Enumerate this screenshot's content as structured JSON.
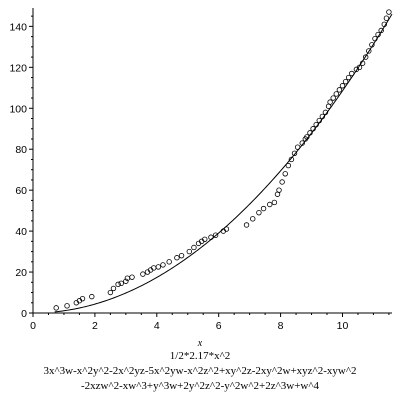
{
  "chart_data": {
    "type": "scatter",
    "xlabel": "x",
    "ylabel": "",
    "xlim": [
      0,
      11.6
    ],
    "ylim": [
      0,
      148
    ],
    "x_ticks": [
      0,
      2,
      4,
      6,
      8,
      10
    ],
    "y_ticks": [
      0,
      20,
      40,
      60,
      80,
      100,
      120,
      140
    ],
    "captions": [
      "1/2*2.17*x^2",
      "3x^3w-x^2y^2-2x^2yz-5x^2yw-x^2z^2+xy^2z-2xy^2w+xyz^2-xyw^2",
      "-2xzw^2-xw^3+y^3w+2y^2z^2-y^2w^2+2z^3w+w^4"
    ],
    "series": [
      {
        "kind": "points",
        "marker": "open-circle",
        "x": [
          0.75,
          1.1,
          1.4,
          1.5,
          1.6,
          1.9,
          2.5,
          2.6,
          2.75,
          2.85,
          3.0,
          3.05,
          3.2,
          3.55,
          3.7,
          3.8,
          3.9,
          4.05,
          4.2,
          4.4,
          4.65,
          4.8,
          5.05,
          5.2,
          5.35,
          5.45,
          5.55,
          5.75,
          5.9,
          6.15,
          6.25,
          6.9,
          7.1,
          7.3,
          7.45,
          7.65,
          7.8,
          7.9,
          7.95,
          8.05,
          8.15,
          8.25,
          8.35,
          8.45,
          8.55,
          8.7,
          8.8,
          8.85,
          8.95,
          9.05,
          9.15,
          9.25,
          9.35,
          9.45,
          9.55,
          9.6,
          9.7,
          9.8,
          9.9,
          10.0,
          10.1,
          10.2,
          10.3,
          10.45,
          10.55,
          10.65,
          10.75,
          10.85,
          10.95,
          11.05,
          11.15,
          11.25,
          11.35,
          11.42,
          11.5
        ],
        "y": [
          2.5,
          3.5,
          5,
          6,
          7,
          8,
          10,
          12,
          14,
          14.5,
          15.5,
          17,
          17.5,
          19,
          20,
          21,
          22,
          22.5,
          23.5,
          25,
          27,
          28,
          30,
          32,
          34,
          35,
          36,
          37,
          38,
          40,
          41,
          43,
          46,
          49,
          51,
          53,
          54,
          58,
          60,
          64,
          68,
          72,
          75,
          78,
          81,
          83,
          85,
          86,
          88,
          90,
          92,
          94,
          96,
          98,
          101,
          103,
          105,
          107,
          109,
          111,
          113,
          115,
          117,
          119,
          120,
          122,
          125,
          128,
          131,
          134,
          136,
          138,
          141,
          144,
          147
        ]
      },
      {
        "kind": "curve",
        "expression": "1/2*2.17*x^2",
        "coef": 1.085
      }
    ]
  }
}
